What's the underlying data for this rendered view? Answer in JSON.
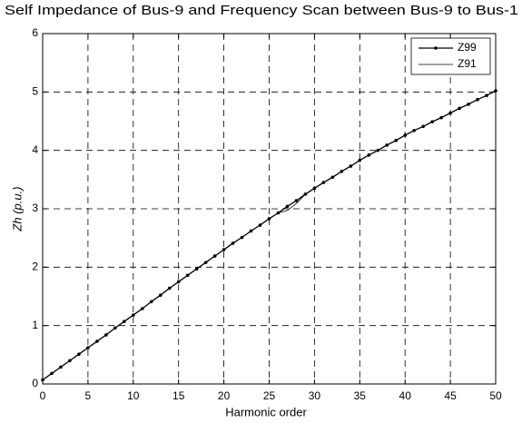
{
  "chart_data": {
    "type": "line",
    "title": "Self Impedance of Bus-9 and Frequency Scan between Bus-9 to Bus-1",
    "xlabel": "Harmonic order",
    "ylabel": "Zh (p.u.)",
    "x": [
      0,
      1,
      2,
      3,
      4,
      5,
      6,
      7,
      8,
      9,
      10,
      11,
      12,
      13,
      14,
      15,
      16,
      17,
      18,
      19,
      20,
      21,
      22,
      23,
      24,
      25,
      26,
      27,
      28,
      29,
      30,
      31,
      32,
      33,
      34,
      35,
      36,
      37,
      38,
      39,
      40,
      41,
      42,
      43,
      44,
      45,
      46,
      47,
      48,
      49,
      50
    ],
    "series": [
      {
        "name": "Z99",
        "color": "#000000",
        "marker": ".",
        "values": [
          0.07,
          0.18,
          0.29,
          0.4,
          0.51,
          0.62,
          0.73,
          0.84,
          0.96,
          1.07,
          1.18,
          1.29,
          1.41,
          1.52,
          1.64,
          1.75,
          1.86,
          1.97,
          2.08,
          2.19,
          2.3,
          2.41,
          2.51,
          2.62,
          2.72,
          2.83,
          2.93,
          3.04,
          3.14,
          3.25,
          3.35,
          3.45,
          3.54,
          3.64,
          3.73,
          3.83,
          3.92,
          4.0,
          4.09,
          4.17,
          4.26,
          4.34,
          4.41,
          4.49,
          4.56,
          4.64,
          4.72,
          4.79,
          4.87,
          4.94,
          5.02
        ]
      },
      {
        "name": "Z91",
        "color": "#000000",
        "values": [
          0.07,
          0.18,
          0.29,
          0.4,
          0.51,
          0.62,
          0.73,
          0.84,
          0.96,
          1.07,
          1.18,
          1.29,
          1.41,
          1.52,
          1.64,
          1.75,
          1.86,
          1.97,
          2.08,
          2.19,
          2.3,
          2.41,
          2.51,
          2.62,
          2.72,
          2.83,
          2.93,
          2.97,
          3.09,
          3.25,
          3.35,
          3.45,
          3.54,
          3.64,
          3.73,
          3.83,
          3.92,
          4.0,
          4.09,
          4.17,
          4.26,
          4.34,
          4.41,
          4.49,
          4.56,
          4.64,
          4.72,
          4.79,
          4.87,
          4.94,
          5.02
        ]
      }
    ],
    "xlim": [
      0,
      50
    ],
    "xticks": [
      0,
      5,
      10,
      15,
      20,
      25,
      30,
      35,
      40,
      45,
      50
    ],
    "ylim": [
      0,
      6
    ],
    "yticks": [
      0,
      1,
      2,
      3,
      4,
      5,
      6
    ],
    "grid": true,
    "legend": "upper right"
  }
}
